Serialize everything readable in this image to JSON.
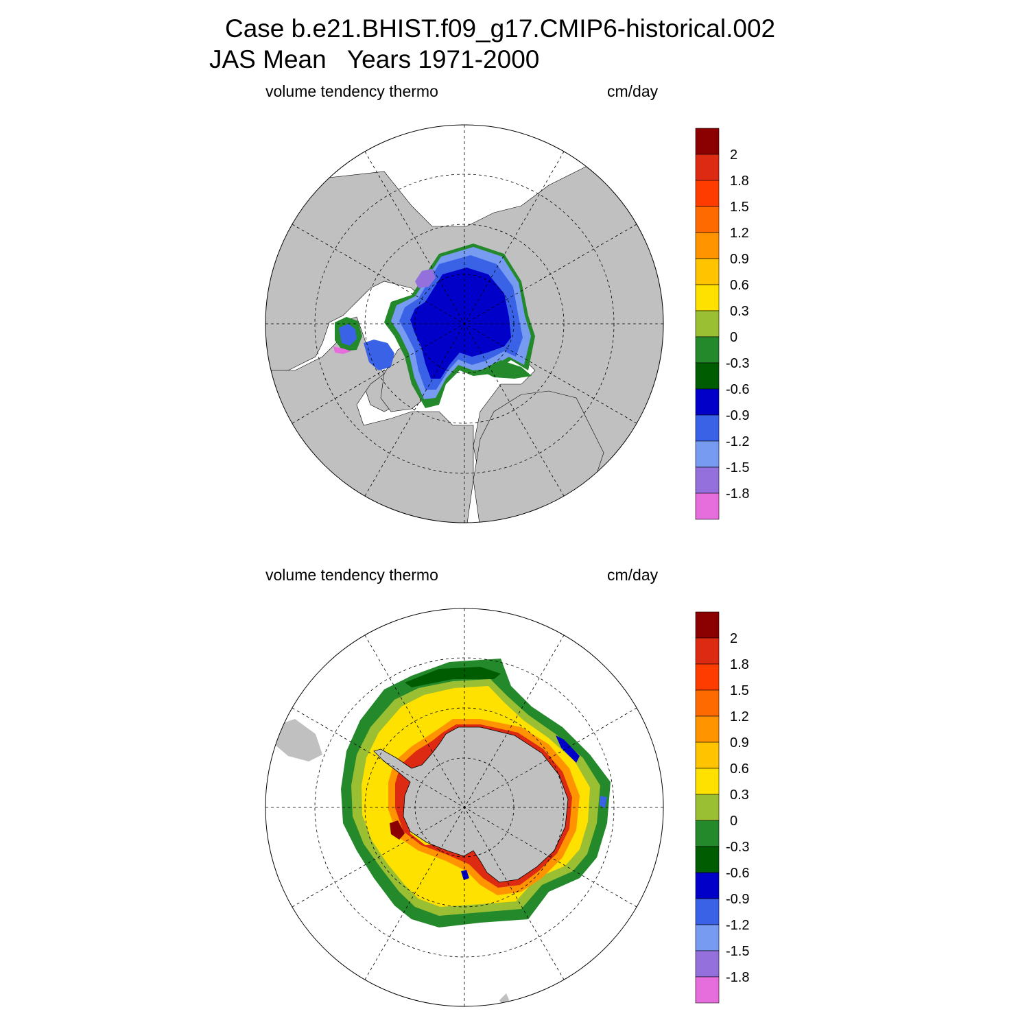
{
  "title_line1": "Case b.e21.BHIST.f09_g17.CMIP6-historical.002",
  "title_line2": "JAS Mean   Years 1971-2000",
  "colorscale": {
    "levels": [
      "2",
      "1.8",
      "1.5",
      "1.2",
      "0.9",
      "0.6",
      "0.3",
      "0",
      "-0.3",
      "-0.6",
      "-0.9",
      "-1.2",
      "-1.5",
      "-1.8"
    ],
    "colors": [
      "#8b0000",
      "#dd2a12",
      "#ff3c00",
      "#ff6a00",
      "#ff9300",
      "#ffc300",
      "#ffe100",
      "#9bbf33",
      "#23892a",
      "#005c00",
      "#0000c8",
      "#3a62e6",
      "#789bf2",
      "#9370db",
      "#e66edc"
    ]
  },
  "palette": {
    "land": "#c0c0c0",
    "ocean": "#ffffff",
    "coast": "#000000"
  },
  "panels": [
    {
      "id": "arctic",
      "hemisphere": "north",
      "variable": "volume tendency thermo",
      "units": "cm/day"
    },
    {
      "id": "antarctic",
      "hemisphere": "south",
      "variable": "volume tendency thermo",
      "units": "cm/day"
    }
  ]
}
